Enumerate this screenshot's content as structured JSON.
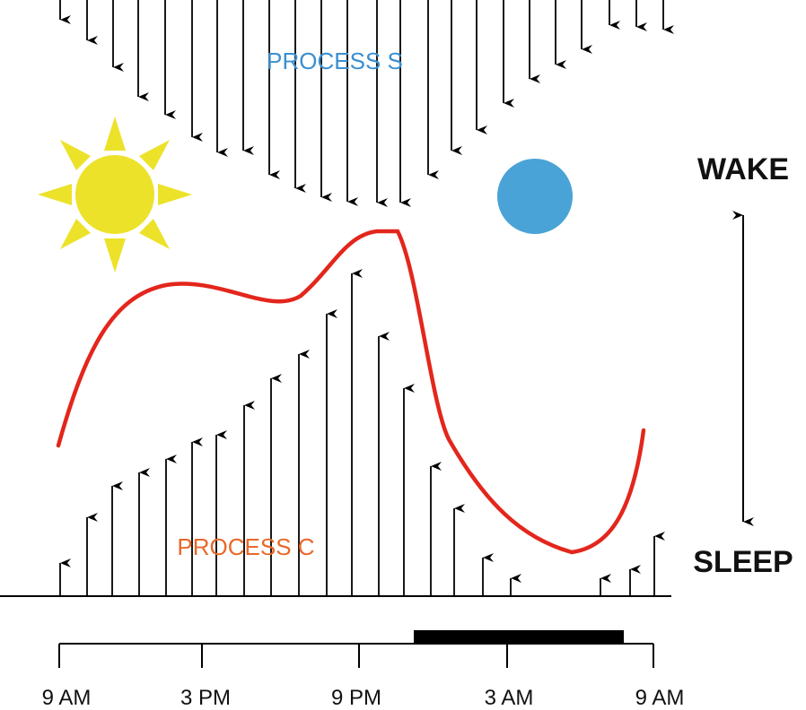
{
  "labels": {
    "process_s": "PROCESS S",
    "process_c": "PROCESS C",
    "wake": "WAKE",
    "sleep": "SLEEP"
  },
  "time_axis": {
    "ticks": [
      "9 AM",
      "3 PM",
      "9 PM",
      "3 AM",
      "9 AM"
    ],
    "sleep_bar_label": ""
  },
  "colors": {
    "process_s": "#3b8fd0",
    "process_c": "#e9682a",
    "curve": "#e3261c",
    "sun": "#ece22a",
    "moon": "#4aa3d6",
    "ink": "#000000"
  },
  "icons": {
    "sun": "sun-icon",
    "moon": "moon-icon"
  }
}
